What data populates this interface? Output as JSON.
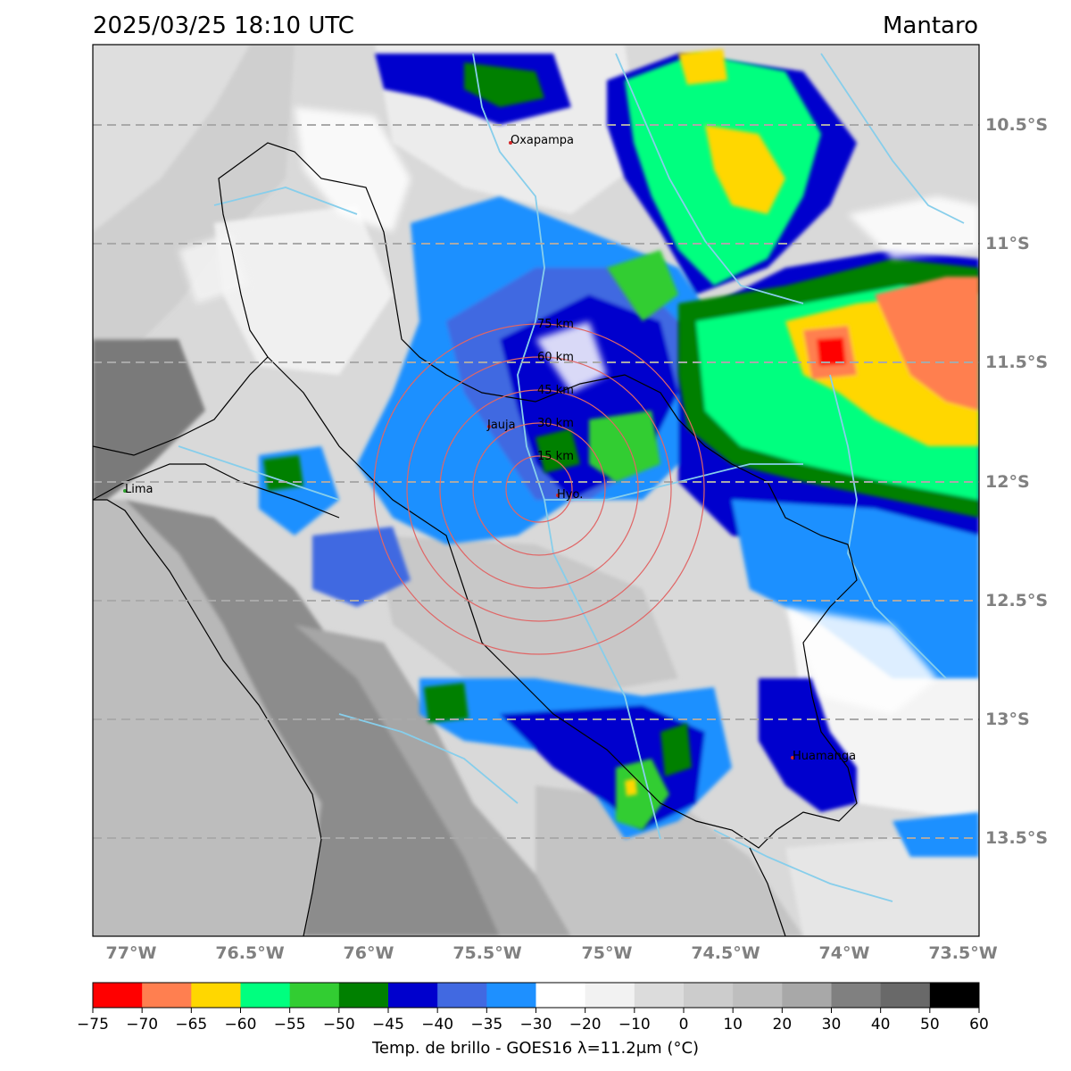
{
  "header": {
    "timestamp": "2025/03/25 18:10 UTC",
    "region": "Mantaro"
  },
  "map": {
    "lat_labels": [
      "10.5°S",
      "11°S",
      "11.5°S",
      "12°S",
      "12.5°S",
      "13°S",
      "13.5°S"
    ],
    "lon_labels": [
      "77°W",
      "76.5°W",
      "76°W",
      "75.5°W",
      "75°W",
      "74.5°W",
      "74°W",
      "73.5°W"
    ],
    "cities": [
      {
        "name": "Oxapampa"
      },
      {
        "name": "Jauja"
      },
      {
        "name": "Lima"
      },
      {
        "name": "Hyo."
      },
      {
        "name": "Huamanga"
      }
    ],
    "rings": [
      "15 km",
      "30 km",
      "45 km",
      "60 km",
      "75 km"
    ]
  },
  "colorbar": {
    "title": "Temp. de brillo - GOES16 λ=11.2μm (°C)",
    "ticks": [
      "−75",
      "−70",
      "−65",
      "−60",
      "−55",
      "−50",
      "−45",
      "−40",
      "−35",
      "−30",
      "−20",
      "−10",
      "0",
      "10",
      "20",
      "30",
      "40",
      "50",
      "60"
    ],
    "colors": [
      "#ff0000",
      "#ff7f50",
      "#ffd700",
      "#00ff7f",
      "#32cd32",
      "#008000",
      "#0000cd",
      "#4169e1",
      "#1e90ff",
      "#ffffff",
      "#f2f2f2",
      "#dcdcdc",
      "#cccccc",
      "#bebebe",
      "#a8a8a8",
      "#808080",
      "#696969",
      "#000000"
    ]
  }
}
